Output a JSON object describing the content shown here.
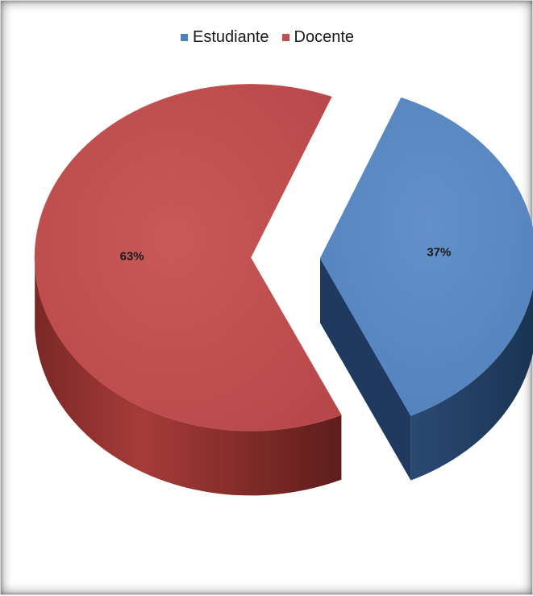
{
  "chart_data": {
    "type": "pie",
    "categories": [
      "Estudiante",
      "Docente"
    ],
    "values": [
      37,
      63
    ],
    "data_labels": [
      "37%",
      "63%"
    ],
    "colors": [
      "#4f81bd",
      "#c0504d"
    ],
    "side_colors": [
      "#1f3a5e",
      "#8e2f2c"
    ],
    "legend_position": "top-center",
    "style": "3d-exploded"
  }
}
